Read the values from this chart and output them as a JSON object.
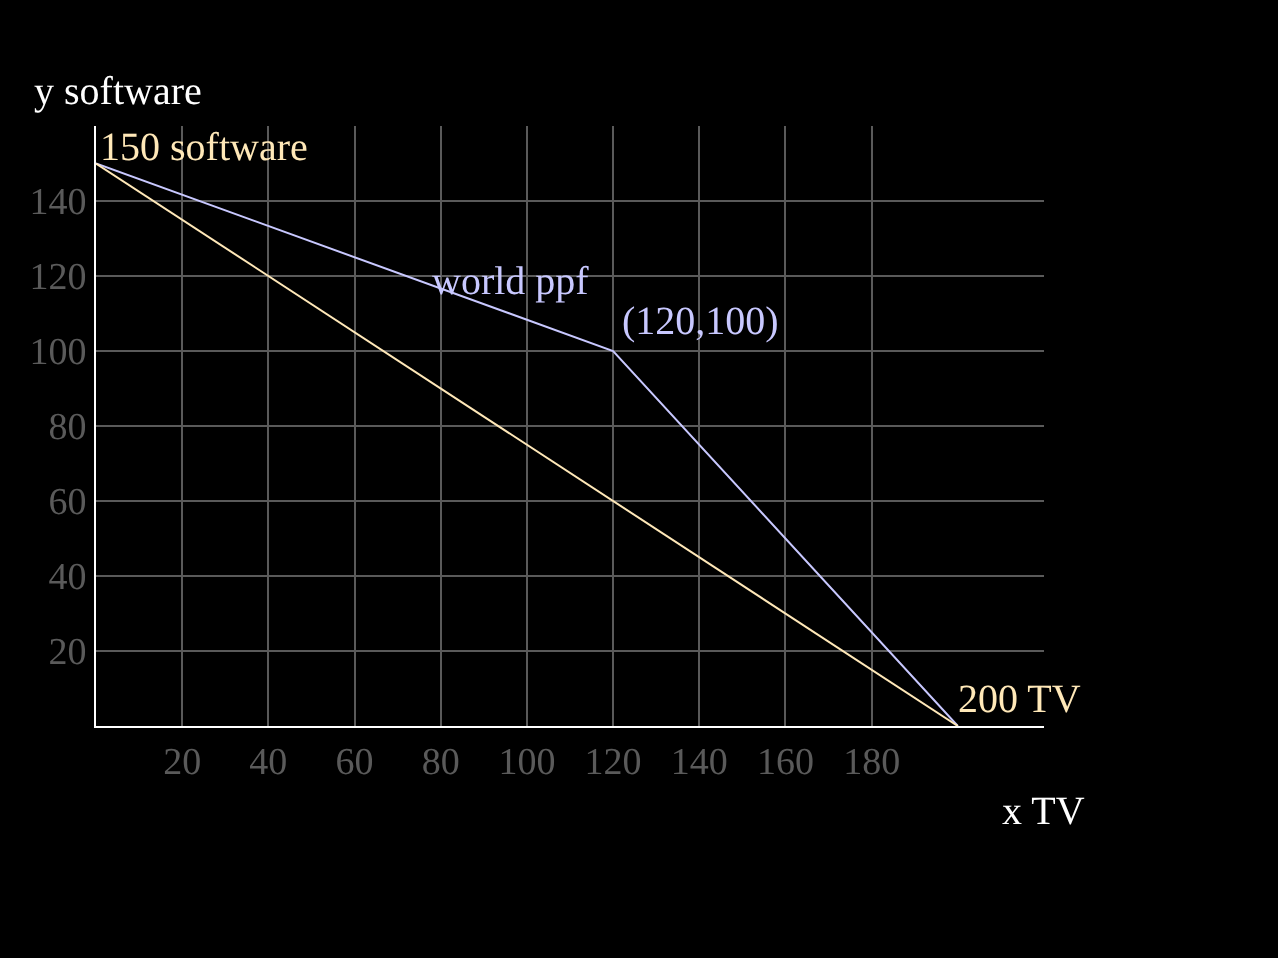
{
  "chart_data": {
    "type": "line",
    "xlabel": "x TV",
    "ylabel": "y software",
    "series": [
      {
        "name": "world ppf",
        "color": "#c8c8ff",
        "x": [
          0,
          120,
          200
        ],
        "values": [
          150,
          100,
          0
        ]
      },
      {
        "color": "#ffe8b8",
        "x": [
          0,
          200
        ],
        "values": [
          150,
          0
        ]
      }
    ],
    "annotations": [
      {
        "text": "150 software",
        "x": 0,
        "y": 150
      },
      {
        "text": "(120,100)",
        "x": 120,
        "y": 100
      },
      {
        "text": "200 TV",
        "x": 200,
        "y": 0
      }
    ],
    "xlim": [
      0,
      220
    ],
    "xticks": [
      20,
      40,
      60,
      80,
      100,
      120,
      140,
      160,
      180
    ],
    "ylim": [
      0,
      160
    ],
    "yticks": [
      20,
      40,
      60,
      80,
      100,
      120,
      140
    ],
    "grid": true,
    "legend": false,
    "marker": "none",
    "line_style": "solid"
  }
}
